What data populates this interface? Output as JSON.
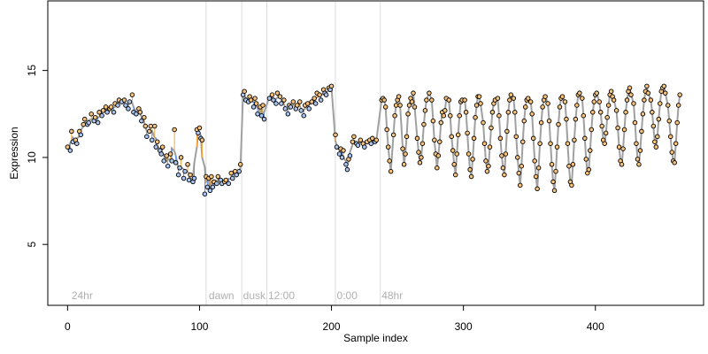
{
  "chart_data": {
    "type": "scatter",
    "xlabel": "Sample index",
    "ylabel": "Expression",
    "xlim": [
      -15,
      482
    ],
    "ylim": [
      1.5,
      19
    ],
    "xticks": [
      0,
      100,
      200,
      300,
      400
    ],
    "yticks": [
      5,
      10,
      15
    ],
    "grid": false,
    "region_boundaries": [
      105,
      132,
      151,
      203,
      237
    ],
    "regions": [
      {
        "label": "24hr",
        "x": 3
      },
      {
        "label": "dawn",
        "x": 107
      },
      {
        "label": "dusk",
        "x": 133
      },
      {
        "label": "12:00",
        "x": 152
      },
      {
        "label": "0:00",
        "x": 204
      },
      {
        "label": "48hr",
        "x": 238
      }
    ],
    "fit_color": "#a0a0a0",
    "residual_above_color": "#f4a93b",
    "residual_below_color": "#6495ed",
    "point_color": "#000000",
    "points": [
      [
        0,
        10.6
      ],
      [
        2,
        10.4
      ],
      [
        3,
        11.5
      ],
      [
        4,
        10.9
      ],
      [
        6,
        11.0
      ],
      [
        7,
        10.8
      ],
      [
        9,
        11.5
      ],
      [
        10,
        11.3
      ],
      [
        12,
        11.9
      ],
      [
        13,
        12.2
      ],
      [
        15,
        11.9
      ],
      [
        16,
        12.0
      ],
      [
        18,
        12.5
      ],
      [
        20,
        12.1
      ],
      [
        21,
        12.3
      ],
      [
        23,
        12.0
      ],
      [
        24,
        12.6
      ],
      [
        26,
        12.4
      ],
      [
        27,
        12.7
      ],
      [
        29,
        12.9
      ],
      [
        30,
        12.6
      ],
      [
        32,
        12.8
      ],
      [
        33,
        12.9
      ],
      [
        35,
        12.6
      ],
      [
        36,
        13.1
      ],
      [
        38,
        13.0
      ],
      [
        39,
        13.3
      ],
      [
        41,
        13.2
      ],
      [
        43,
        13.3
      ],
      [
        44,
        13.0
      ],
      [
        46,
        12.8
      ],
      [
        47,
        13.2
      ],
      [
        49,
        13.6
      ],
      [
        50,
        12.6
      ],
      [
        52,
        12.5
      ],
      [
        54,
        12.8
      ],
      [
        55,
        12.6
      ],
      [
        56,
        12.1
      ],
      [
        58,
        12.3
      ],
      [
        59,
        11.8
      ],
      [
        60,
        11.2
      ],
      [
        62,
        11.5
      ],
      [
        63,
        11.8
      ],
      [
        64,
        11.0
      ],
      [
        66,
        11.8
      ],
      [
        67,
        10.6
      ],
      [
        68,
        10.9
      ],
      [
        70,
        10.4
      ],
      [
        71,
        10.2
      ],
      [
        72,
        10.6
      ],
      [
        73,
        9.8
      ],
      [
        75,
        10.1
      ],
      [
        76,
        9.5
      ],
      [
        78,
        10.2
      ],
      [
        79,
        9.8
      ],
      [
        81,
        11.6
      ],
      [
        82,
        9.7
      ],
      [
        84,
        9.0
      ],
      [
        85,
        9.4
      ],
      [
        86,
        10.0
      ],
      [
        88,
        8.8
      ],
      [
        89,
        9.2
      ],
      [
        91,
        9.6
      ],
      [
        92,
        8.7
      ],
      [
        93,
        9.0
      ],
      [
        95,
        8.6
      ],
      [
        96,
        8.8
      ],
      [
        98,
        11.6
      ],
      [
        99,
        11.4
      ],
      [
        100,
        11.7
      ],
      [
        101,
        11.1
      ],
      [
        102,
        11.0
      ],
      [
        104,
        7.9
      ],
      [
        105,
        8.9
      ],
      [
        106,
        8.3
      ],
      [
        107,
        8.8
      ],
      [
        108,
        8.1
      ],
      [
        109,
        8.9
      ],
      [
        110,
        8.3
      ],
      [
        111,
        8.6
      ],
      [
        113,
        8.5
      ],
      [
        114,
        8.9
      ],
      [
        116,
        8.7
      ],
      [
        117,
        8.5
      ],
      [
        119,
        8.6
      ],
      [
        120,
        8.7
      ],
      [
        122,
        8.5
      ],
      [
        124,
        9.1
      ],
      [
        125,
        8.8
      ],
      [
        127,
        9.2
      ],
      [
        128,
        9.0
      ],
      [
        130,
        9.2
      ],
      [
        131,
        9.6
      ],
      [
        133,
        13.6
      ],
      [
        134,
        13.8
      ],
      [
        135,
        13.3
      ],
      [
        137,
        13.2
      ],
      [
        138,
        13.5
      ],
      [
        139,
        13.3
      ],
      [
        141,
        12.9
      ],
      [
        142,
        13.4
      ],
      [
        143,
        13.1
      ],
      [
        144,
        12.5
      ],
      [
        146,
        12.9
      ],
      [
        147,
        12.4
      ],
      [
        148,
        13.0
      ],
      [
        149,
        12.2
      ],
      [
        153,
        13.4
      ],
      [
        155,
        13.6
      ],
      [
        156,
        13.3
      ],
      [
        158,
        13.1
      ],
      [
        159,
        13.7
      ],
      [
        161,
        13.5
      ],
      [
        162,
        13.1
      ],
      [
        164,
        13.3
      ],
      [
        165,
        12.8
      ],
      [
        167,
        12.5
      ],
      [
        168,
        13.0
      ],
      [
        169,
        12.9
      ],
      [
        171,
        13.2
      ],
      [
        173,
        12.8
      ],
      [
        174,
        13.0
      ],
      [
        176,
        13.2
      ],
      [
        177,
        12.7
      ],
      [
        179,
        12.4
      ],
      [
        180,
        13.0
      ],
      [
        182,
        13.1
      ],
      [
        183,
        12.8
      ],
      [
        185,
        13.2
      ],
      [
        187,
        13.4
      ],
      [
        188,
        13.1
      ],
      [
        189,
        13.7
      ],
      [
        191,
        13.6
      ],
      [
        192,
        13.3
      ],
      [
        194,
        13.9
      ],
      [
        195,
        13.7
      ],
      [
        196,
        13.6
      ],
      [
        198,
        14.0
      ],
      [
        199,
        13.9
      ],
      [
        200,
        14.1
      ],
      [
        203,
        11.3
      ],
      [
        204,
        10.6
      ],
      [
        206,
        10.2
      ],
      [
        207,
        10.5
      ],
      [
        208,
        10.0
      ],
      [
        209,
        10.4
      ],
      [
        211,
        9.6
      ],
      [
        212,
        9.3
      ],
      [
        213,
        9.9
      ],
      [
        214,
        10.1
      ],
      [
        216,
        10.9
      ],
      [
        217,
        11.2
      ],
      [
        219,
        10.8
      ],
      [
        220,
        10.7
      ],
      [
        222,
        11.0
      ],
      [
        224,
        10.8
      ],
      [
        225,
        10.6
      ],
      [
        227,
        10.9
      ],
      [
        229,
        11.0
      ],
      [
        230,
        10.8
      ],
      [
        231,
        11.1
      ],
      [
        233,
        10.9
      ],
      [
        234,
        11.0
      ],
      [
        238,
        13.3
      ],
      [
        239,
        13.4
      ],
      [
        240,
        13.3
      ],
      [
        241,
        12.9
      ],
      [
        242,
        11.6
      ],
      [
        243,
        10.6
      ],
      [
        244,
        9.8
      ],
      [
        245,
        9.2
      ],
      [
        247,
        11.3
      ],
      [
        248,
        12.4
      ],
      [
        249,
        13.0
      ],
      [
        250,
        13.3
      ],
      [
        251,
        13.5
      ],
      [
        252,
        13.0
      ],
      [
        254,
        10.5
      ],
      [
        255,
        9.6
      ],
      [
        256,
        10.2
      ],
      [
        257,
        11.2
      ],
      [
        258,
        12.5
      ],
      [
        259,
        13.0
      ],
      [
        260,
        13.4
      ],
      [
        261,
        13.2
      ],
      [
        262,
        13.7
      ],
      [
        263,
        12.9
      ],
      [
        265,
        11.1
      ],
      [
        266,
        10.3
      ],
      [
        267,
        9.7
      ],
      [
        268,
        10.0
      ],
      [
        269,
        10.8
      ],
      [
        270,
        11.9
      ],
      [
        271,
        12.7
      ],
      [
        272,
        13.3
      ],
      [
        274,
        13.7
      ],
      [
        276,
        13.3
      ],
      [
        277,
        12.1
      ],
      [
        278,
        11.0
      ],
      [
        279,
        10.2
      ],
      [
        280,
        9.4
      ],
      [
        281,
        10.1
      ],
      [
        282,
        10.9
      ],
      [
        283,
        12.0
      ],
      [
        284,
        12.6
      ],
      [
        285,
        12.4
      ],
      [
        286,
        12.7
      ],
      [
        287,
        13.4
      ],
      [
        289,
        13.3
      ],
      [
        290,
        12.4
      ],
      [
        291,
        11.2
      ],
      [
        292,
        10.4
      ],
      [
        293,
        9.6
      ],
      [
        294,
        9.0
      ],
      [
        295,
        10.2
      ],
      [
        296,
        11.3
      ],
      [
        297,
        12.4
      ],
      [
        298,
        13.2
      ],
      [
        299,
        13.3
      ],
      [
        301,
        13.3
      ],
      [
        302,
        12.6
      ],
      [
        303,
        11.4
      ],
      [
        304,
        10.2
      ],
      [
        305,
        9.3
      ],
      [
        306,
        8.9
      ],
      [
        307,
        9.9
      ],
      [
        308,
        11.1
      ],
      [
        309,
        12.3
      ],
      [
        310,
        13.0
      ],
      [
        311,
        13.5
      ],
      [
        312,
        13.5
      ],
      [
        313,
        13.1
      ],
      [
        315,
        12.0
      ],
      [
        316,
        10.8
      ],
      [
        317,
        9.8
      ],
      [
        318,
        9.2
      ],
      [
        319,
        9.5
      ],
      [
        320,
        10.6
      ],
      [
        321,
        11.7
      ],
      [
        322,
        12.6
      ],
      [
        323,
        13.1
      ],
      [
        324,
        13.3
      ],
      [
        326,
        13.4
      ],
      [
        327,
        12.4
      ],
      [
        328,
        11.1
      ],
      [
        329,
        10.1
      ],
      [
        330,
        9.4
      ],
      [
        331,
        9.0
      ],
      [
        332,
        10.2
      ],
      [
        333,
        11.5
      ],
      [
        334,
        12.6
      ],
      [
        335,
        13.3
      ],
      [
        336,
        13.6
      ],
      [
        338,
        13.4
      ],
      [
        339,
        12.6
      ],
      [
        340,
        11.2
      ],
      [
        341,
        10.0
      ],
      [
        342,
        9.1
      ],
      [
        343,
        8.4
      ],
      [
        344,
        9.5
      ],
      [
        345,
        10.9
      ],
      [
        346,
        12.1
      ],
      [
        347,
        12.9
      ],
      [
        348,
        13.3
      ],
      [
        349,
        13.4
      ],
      [
        351,
        13.2
      ],
      [
        352,
        12.5
      ],
      [
        353,
        11.1
      ],
      [
        354,
        9.8
      ],
      [
        355,
        8.9
      ],
      [
        356,
        8.2
      ],
      [
        357,
        9.4
      ],
      [
        358,
        10.8
      ],
      [
        359,
        12.0
      ],
      [
        360,
        12.9
      ],
      [
        361,
        13.3
      ],
      [
        362,
        13.5
      ],
      [
        364,
        13.1
      ],
      [
        365,
        12.1
      ],
      [
        366,
        10.8
      ],
      [
        367,
        9.6
      ],
      [
        368,
        8.6
      ],
      [
        369,
        8.1
      ],
      [
        370,
        9.2
      ],
      [
        371,
        10.6
      ],
      [
        372,
        11.9
      ],
      [
        373,
        12.9
      ],
      [
        374,
        13.4
      ],
      [
        375,
        13.5
      ],
      [
        377,
        13.2
      ],
      [
        378,
        12.2
      ],
      [
        379,
        10.8
      ],
      [
        380,
        9.5
      ],
      [
        381,
        8.6
      ],
      [
        382,
        8.4
      ],
      [
        383,
        9.6
      ],
      [
        384,
        11.0
      ],
      [
        385,
        12.2
      ],
      [
        386,
        13.0
      ],
      [
        387,
        13.6
      ],
      [
        388,
        13.7
      ],
      [
        390,
        13.4
      ],
      [
        391,
        12.4
      ],
      [
        392,
        11.1
      ],
      [
        393,
        9.9
      ],
      [
        394,
        9.1
      ],
      [
        395,
        9.3
      ],
      [
        396,
        10.4
      ],
      [
        397,
        11.6
      ],
      [
        398,
        12.6
      ],
      [
        399,
        13.2
      ],
      [
        400,
        13.6
      ],
      [
        401,
        13.7
      ],
      [
        403,
        13.2
      ],
      [
        404,
        12.6
      ],
      [
        405,
        11.8
      ],
      [
        406,
        11.0
      ],
      [
        407,
        10.8
      ],
      [
        408,
        11.4
      ],
      [
        409,
        12.3
      ],
      [
        410,
        13.0
      ],
      [
        411,
        13.6
      ],
      [
        412,
        13.8
      ],
      [
        413,
        13.5
      ],
      [
        414,
        13.3
      ],
      [
        416,
        12.7
      ],
      [
        417,
        11.7
      ],
      [
        418,
        10.6
      ],
      [
        419,
        9.8
      ],
      [
        420,
        9.6
      ],
      [
        421,
        10.5
      ],
      [
        422,
        11.6
      ],
      [
        423,
        12.6
      ],
      [
        424,
        13.3
      ],
      [
        425,
        13.8
      ],
      [
        426,
        14.0
      ],
      [
        427,
        13.6
      ],
      [
        429,
        13.1
      ],
      [
        430,
        12.0
      ],
      [
        431,
        10.8
      ],
      [
        432,
        9.9
      ],
      [
        433,
        9.6
      ],
      [
        434,
        10.4
      ],
      [
        435,
        11.5
      ],
      [
        436,
        12.5
      ],
      [
        437,
        13.3
      ],
      [
        438,
        13.8
      ],
      [
        439,
        14.1
      ],
      [
        440,
        13.7
      ],
      [
        442,
        13.3
      ],
      [
        443,
        12.6
      ],
      [
        444,
        11.8
      ],
      [
        445,
        10.9
      ],
      [
        446,
        10.6
      ],
      [
        447,
        11.2
      ],
      [
        448,
        12.2
      ],
      [
        449,
        13.1
      ],
      [
        450,
        13.8
      ],
      [
        451,
        14.0
      ],
      [
        452,
        14.1
      ],
      [
        453,
        13.7
      ],
      [
        455,
        13.0
      ],
      [
        456,
        12.1
      ],
      [
        457,
        11.2
      ],
      [
        458,
        10.3
      ],
      [
        459,
        9.8
      ],
      [
        460,
        9.7
      ],
      [
        461,
        10.8
      ],
      [
        462,
        12.0
      ],
      [
        463,
        13.0
      ],
      [
        464,
        13.6
      ]
    ]
  }
}
